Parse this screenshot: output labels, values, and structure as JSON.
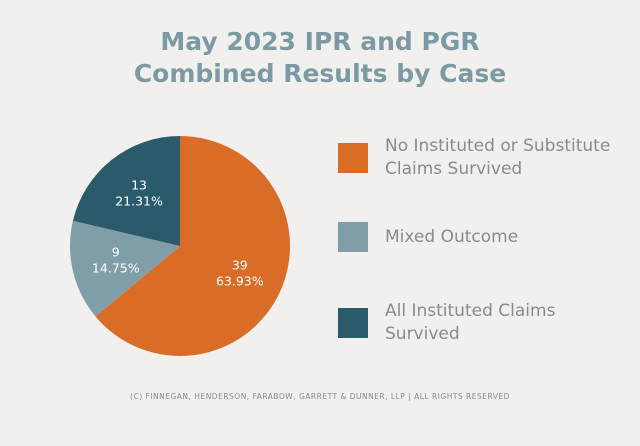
{
  "chart_data": {
    "type": "pie",
    "title": "May 2023 IPR and PGR Combined Results by Case",
    "categories": [
      "No Instituted or Substitute Claims Survived",
      "Mixed Outcome",
      "All Instituted Claims Survived"
    ],
    "values": [
      39,
      9,
      13
    ],
    "percentages": [
      "63.93%",
      "14.75%",
      "21.31%"
    ],
    "colors": [
      "#d96d27",
      "#7f9ea7",
      "#2b5a6b"
    ],
    "footer": "(C) FINNEGAN, HENDERSON, FARABOW, GARRETT & DUNNER, LLP | ALL RIGHTS RESERVED"
  }
}
